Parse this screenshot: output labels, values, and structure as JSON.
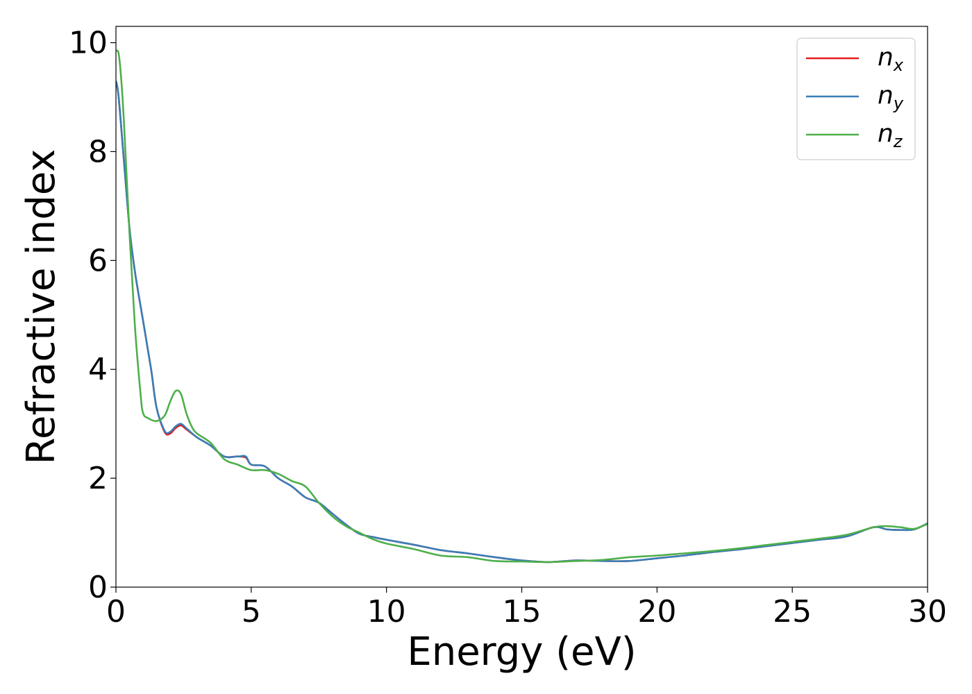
{
  "chart_data": {
    "type": "line",
    "xlabel": "Energy (eV)",
    "ylabel": "Refractive index",
    "xlim": [
      0,
      30
    ],
    "ylim": [
      0,
      10.3
    ],
    "xticks": [
      "0",
      "5",
      "10",
      "15",
      "20",
      "25",
      "30"
    ],
    "xtick_values": [
      0,
      5,
      10,
      15,
      20,
      25,
      30
    ],
    "yticks": [
      "0",
      "2",
      "4",
      "6",
      "8",
      "10"
    ],
    "ytick_values": [
      0,
      2,
      4,
      6,
      8,
      10
    ],
    "grid": false,
    "legend_position": "top-right",
    "series": [
      {
        "name": "n_x",
        "legend_main": "n",
        "legend_sub": "x",
        "color": "#e41a1c",
        "x": [
          0,
          0.1,
          0.3,
          0.5,
          0.7,
          1.0,
          1.3,
          1.5,
          1.8,
          2.0,
          2.2,
          2.4,
          2.6,
          3.0,
          3.5,
          4.0,
          4.5,
          4.8,
          5.0,
          5.5,
          6.0,
          6.5,
          7.0,
          7.5,
          8.0,
          8.5,
          9.0,
          9.5,
          10.0,
          11.0,
          12.0,
          13.0,
          14.0,
          15.0,
          16.0,
          17.0,
          18.0,
          19.0,
          20.0,
          21.0,
          22.0,
          23.0,
          24.0,
          25.0,
          26.0,
          27.0,
          28.0,
          28.5,
          29.0,
          29.5,
          30.0
        ],
        "y": [
          9.3,
          9.0,
          7.8,
          6.6,
          5.8,
          4.9,
          4.0,
          3.3,
          2.85,
          2.82,
          2.92,
          2.97,
          2.9,
          2.75,
          2.6,
          2.4,
          2.4,
          2.38,
          2.25,
          2.22,
          2.0,
          1.85,
          1.65,
          1.55,
          1.35,
          1.15,
          0.98,
          0.92,
          0.87,
          0.78,
          0.68,
          0.62,
          0.55,
          0.49,
          0.46,
          0.49,
          0.48,
          0.48,
          0.53,
          0.58,
          0.64,
          0.69,
          0.75,
          0.81,
          0.87,
          0.93,
          1.1,
          1.06,
          1.05,
          1.06,
          1.17
        ]
      },
      {
        "name": "n_y",
        "legend_main": "n",
        "legend_sub": "y",
        "color": "#377eb8",
        "x": [
          0,
          0.1,
          0.3,
          0.5,
          0.7,
          1.0,
          1.3,
          1.5,
          1.8,
          2.0,
          2.2,
          2.4,
          2.6,
          3.0,
          3.5,
          4.0,
          4.5,
          4.8,
          5.0,
          5.5,
          6.0,
          6.5,
          7.0,
          7.5,
          8.0,
          8.5,
          9.0,
          9.5,
          10.0,
          11.0,
          12.0,
          13.0,
          14.0,
          15.0,
          16.0,
          17.0,
          18.0,
          19.0,
          20.0,
          21.0,
          22.0,
          23.0,
          24.0,
          25.0,
          26.0,
          27.0,
          28.0,
          28.5,
          29.0,
          29.5,
          30.0
        ],
        "y": [
          9.3,
          9.0,
          7.8,
          6.6,
          5.8,
          4.9,
          4.0,
          3.3,
          2.87,
          2.85,
          2.95,
          3.0,
          2.92,
          2.75,
          2.6,
          2.4,
          2.4,
          2.4,
          2.25,
          2.22,
          2.0,
          1.85,
          1.65,
          1.55,
          1.35,
          1.15,
          0.98,
          0.92,
          0.87,
          0.78,
          0.68,
          0.62,
          0.55,
          0.49,
          0.46,
          0.49,
          0.48,
          0.48,
          0.53,
          0.58,
          0.64,
          0.69,
          0.75,
          0.81,
          0.87,
          0.93,
          1.1,
          1.06,
          1.05,
          1.06,
          1.17
        ]
      },
      {
        "name": "n_z",
        "legend_main": "n",
        "legend_sub": "z",
        "color": "#4daf4a",
        "x": [
          0,
          0.1,
          0.2,
          0.3,
          0.5,
          0.7,
          0.9,
          1.0,
          1.2,
          1.5,
          1.8,
          2.0,
          2.2,
          2.4,
          2.6,
          2.8,
          3.0,
          3.5,
          4.0,
          4.5,
          5.0,
          5.5,
          6.0,
          6.5,
          7.0,
          7.5,
          8.0,
          8.5,
          9.0,
          9.5,
          10.0,
          11.0,
          12.0,
          13.0,
          14.0,
          15.0,
          16.0,
          17.0,
          18.0,
          19.0,
          20.0,
          21.0,
          22.0,
          23.0,
          24.0,
          25.0,
          26.0,
          27.0,
          28.0,
          28.5,
          29.0,
          29.5,
          30.0
        ],
        "y": [
          9.85,
          9.8,
          9.3,
          8.5,
          6.5,
          4.8,
          3.6,
          3.2,
          3.1,
          3.05,
          3.15,
          3.4,
          3.6,
          3.55,
          3.2,
          2.95,
          2.82,
          2.65,
          2.35,
          2.25,
          2.15,
          2.15,
          2.08,
          1.95,
          1.85,
          1.55,
          1.3,
          1.12,
          1.0,
          0.88,
          0.8,
          0.7,
          0.58,
          0.55,
          0.48,
          0.47,
          0.46,
          0.48,
          0.5,
          0.55,
          0.58,
          0.62,
          0.66,
          0.71,
          0.77,
          0.83,
          0.89,
          0.96,
          1.1,
          1.12,
          1.1,
          1.07,
          1.16
        ]
      }
    ]
  }
}
